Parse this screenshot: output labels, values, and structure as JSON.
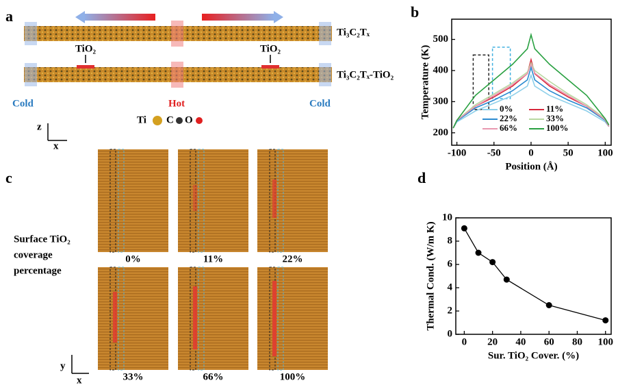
{
  "panel_labels": [
    "a",
    "b",
    "c",
    "d"
  ],
  "panel_a": {
    "top_label": "Ti₃C₂Tₓ",
    "bottom_label": "Ti₃C₂Tₓ-TiO₂",
    "tio2_labels": [
      "TiO₂",
      "TiO₂"
    ],
    "cold_left": "Cold",
    "hot": "Hot",
    "cold_right": "Cold",
    "atoms": [
      "Ti",
      "C",
      "O"
    ],
    "axes": [
      "z",
      "x"
    ]
  },
  "panel_c": {
    "caption": [
      "Surface TiO₂",
      "coverage",
      "percentage"
    ],
    "images": [
      "0%",
      "11%",
      "22%",
      "33%",
      "66%",
      "100%"
    ],
    "axes": [
      "y",
      "x"
    ]
  },
  "chart_data": [
    {
      "type": "line",
      "x_label": "Position (Å)",
      "y_label": "Temperature (K)",
      "x": [
        -105,
        -100,
        -75,
        -50,
        -25,
        -5,
        0,
        5,
        25,
        50,
        75,
        100,
        105
      ],
      "xlim": [
        -107,
        108
      ],
      "xticks": [
        -100,
        -50,
        0,
        50,
        100
      ],
      "ylim": [
        160,
        565
      ],
      "yticks": [
        200,
        300,
        400,
        500
      ],
      "legend": "lower-center",
      "series": [
        {
          "name": "0%",
          "color": "#8fd0ea",
          "values": [
            215,
            235,
            270,
            295,
            320,
            350,
            385,
            350,
            320,
            295,
            270,
            235,
            220
          ]
        },
        {
          "name": "11%",
          "color": "#d8283c",
          "values": [
            215,
            240,
            285,
            315,
            350,
            390,
            435,
            390,
            350,
            315,
            285,
            240,
            220
          ]
        },
        {
          "name": "22%",
          "color": "#2a8ad0",
          "values": [
            215,
            238,
            280,
            305,
            335,
            370,
            410,
            370,
            335,
            305,
            280,
            240,
            220
          ]
        },
        {
          "name": "33%",
          "color": "#b8d8a0",
          "values": [
            215,
            240,
            290,
            325,
            360,
            395,
            425,
            400,
            365,
            325,
            290,
            245,
            222
          ]
        },
        {
          "name": "66%",
          "color": "#e898b0",
          "values": [
            215,
            240,
            285,
            320,
            355,
            390,
            420,
            392,
            355,
            320,
            285,
            242,
            220
          ]
        },
        {
          "name": "100%",
          "color": "#28a040",
          "values": [
            215,
            240,
            320,
            370,
            420,
            470,
            515,
            470,
            420,
            370,
            320,
            245,
            225
          ]
        }
      ]
    },
    {
      "type": "line",
      "markers": true,
      "x_label": "Sur. TiO₂ Cover. (%)",
      "y_label": "Thermal Cond. (W/m K)",
      "x": [
        0,
        10,
        20,
        30,
        60,
        100
      ],
      "xlim": [
        -6,
        104
      ],
      "xticks": [
        0,
        20,
        40,
        60,
        80,
        100
      ],
      "ylim": [
        0,
        10
      ],
      "yticks": [
        0,
        2,
        4,
        6,
        8,
        10
      ],
      "series": [
        {
          "color": "#000000",
          "values": [
            9.1,
            7.0,
            6.2,
            4.7,
            2.5,
            1.2
          ]
        }
      ]
    }
  ]
}
